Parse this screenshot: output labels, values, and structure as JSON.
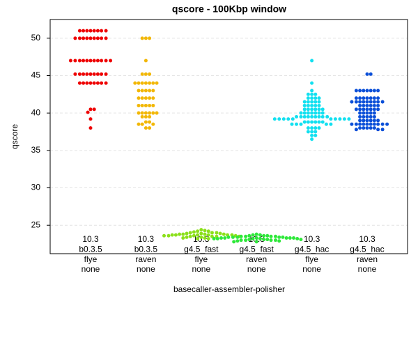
{
  "chart_data": {
    "type": "beeswarm",
    "title": "qscore - 100Kbp window",
    "y_label": "qscore",
    "x_label": "basecaller-assembler-polisher",
    "categories": [
      [
        "10.3",
        "b0.3.5",
        "flye",
        "none"
      ],
      [
        "10.3",
        "b0.3.5",
        "raven",
        "none"
      ],
      [
        "10.3",
        "g4.5_fast",
        "flye",
        "none"
      ],
      [
        "10.3",
        "g4.5_fast",
        "raven",
        "none"
      ],
      [
        "10.3",
        "g4.5_hac",
        "flye",
        "none"
      ],
      [
        "10.3",
        "g4.5_hac",
        "raven",
        "none"
      ]
    ],
    "groups": [
      {
        "color": "#ee0000",
        "values": [
          51,
          51,
          51,
          51,
          51,
          51,
          51,
          51,
          50,
          50,
          50,
          50,
          50,
          50,
          50,
          50,
          50,
          47,
          47,
          47,
          47,
          47,
          47,
          47,
          47,
          47,
          47,
          47,
          45.2,
          45.2,
          45.2,
          45.2,
          45.2,
          45.2,
          45.2,
          45.2,
          45.2,
          44,
          44,
          44,
          44,
          44,
          44,
          44,
          44,
          40.5,
          40.5,
          40.1,
          39.2,
          38
        ]
      },
      {
        "color": "#f2b705",
        "values": [
          50,
          50,
          50,
          47,
          45.2,
          45.2,
          45.2,
          44,
          44,
          44,
          44,
          44,
          44,
          44,
          43,
          43,
          43,
          43,
          43,
          42,
          42,
          42,
          42,
          42,
          41,
          41,
          41,
          41,
          41,
          40,
          40,
          40,
          40,
          40,
          40,
          39.5,
          39.5,
          39.5,
          38.8,
          38.8,
          38.5,
          38.5,
          38.5,
          38,
          38
        ]
      },
      {
        "color": "#8be01a",
        "values": [
          24.4,
          24.3,
          24.2,
          24.2,
          24.1,
          24,
          24,
          24,
          23.9,
          23.9,
          23.9,
          23.8,
          23.8,
          23.8,
          23.8,
          23.7,
          23.7,
          23.7,
          23.7,
          23.7,
          23.7,
          23.6,
          23.6,
          23.6,
          23.6,
          23.5,
          23.5,
          23.5,
          23.5,
          23.4,
          23.4,
          23.3,
          23.3,
          23.2,
          23.2
        ]
      },
      {
        "color": "#2ee83a",
        "values": [
          23.8,
          23.7,
          23.7,
          23.6,
          23.6,
          23.6,
          23.5,
          23.5,
          23.5,
          23.5,
          23.4,
          23.4,
          23.4,
          23.4,
          23.4,
          23.3,
          23.3,
          23.3,
          23.3,
          23.3,
          23.3,
          23.2,
          23.2,
          23.2,
          23.2,
          23.2,
          23.1,
          23.1,
          23.1,
          23.1,
          23,
          23,
          23,
          23,
          22.9,
          22.9,
          22.8,
          22.8
        ]
      },
      {
        "color": "#12e0f0",
        "values": [
          47,
          44,
          43,
          42.5,
          42.5,
          42.5,
          42,
          42,
          42,
          42,
          41.5,
          41.5,
          41.5,
          41.5,
          41.5,
          41,
          41,
          41,
          41,
          41,
          40.5,
          40.5,
          40.5,
          40.5,
          40.5,
          40.5,
          40,
          40,
          40,
          40,
          40,
          40,
          40,
          39.5,
          39.5,
          39.5,
          39.5,
          39.5,
          39.5,
          39.5,
          39.5,
          39.5,
          39.2,
          39.2,
          39.2,
          39.2,
          39.2,
          39.2,
          39.2,
          39.2,
          39.2,
          39.2,
          38.8,
          38.8,
          38.8,
          38.8,
          38.8,
          38.8,
          38.5,
          38.5,
          38.5,
          38.5,
          38.5,
          38,
          38,
          38,
          38,
          37.5,
          37.5,
          37.5,
          37,
          37,
          36.5
        ]
      },
      {
        "color": "#0a4fd8",
        "values": [
          45.2,
          45.2,
          43,
          43,
          43,
          43,
          43,
          43,
          43,
          42,
          42,
          42,
          42,
          42,
          42,
          42,
          41.5,
          41.5,
          41.5,
          41.5,
          41.5,
          41.5,
          41.5,
          41.5,
          41.5,
          41,
          41,
          41,
          41,
          41,
          41,
          40.5,
          40.5,
          40.5,
          40.5,
          40.5,
          40.5,
          40.5,
          40,
          40,
          40,
          40,
          40,
          39.5,
          39.5,
          39.5,
          39.5,
          39.5,
          39,
          39,
          39,
          39,
          39,
          39,
          38.5,
          38.5,
          38.5,
          38.5,
          38.5,
          38.5,
          38.5,
          38.5,
          38.5,
          38.5,
          38,
          38,
          38,
          38,
          38,
          37.8,
          37.8,
          37.8
        ]
      }
    ],
    "ylim": [
      21.2,
      52.5
    ],
    "yticks": [
      25,
      30,
      35,
      40,
      45,
      50
    ],
    "grid": true
  }
}
